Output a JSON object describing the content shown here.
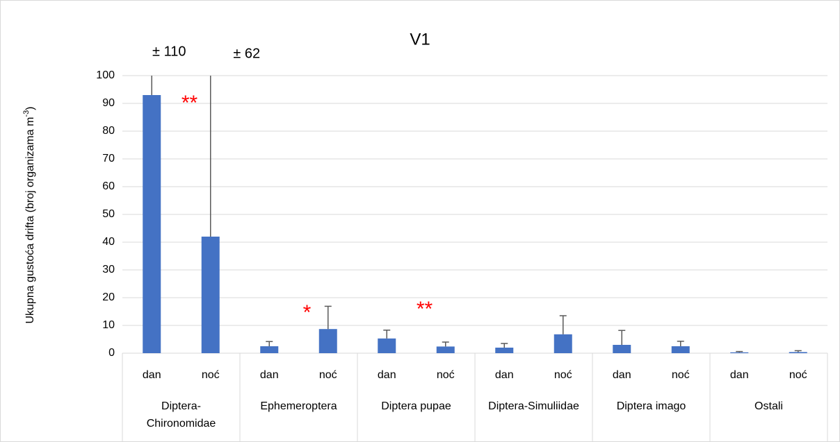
{
  "chart_data": {
    "type": "bar",
    "title": "V1",
    "y_label": "Ukupna gustoća drifta (broj organizama m",
    "y_label_sup": "-3",
    "y_label_end": ")",
    "groups": [
      {
        "name": "Diptera-Chironomidae",
        "categories": [
          "dan",
          "noć"
        ]
      },
      {
        "name": "Ephemeroptera",
        "categories": [
          "dan",
          "noć"
        ]
      },
      {
        "name": "Diptera pupae",
        "categories": [
          "dan",
          "noć"
        ]
      },
      {
        "name": "Diptera-Simuliidae",
        "categories": [
          "dan",
          "noć"
        ]
      },
      {
        "name": "Diptera imago",
        "categories": [
          "dan",
          "noć"
        ]
      },
      {
        "name": "Ostali",
        "categories": [
          "dan",
          "noć"
        ]
      }
    ],
    "series": [
      {
        "color": "#4472c4",
        "values": [
          93,
          42,
          2.5,
          8.7,
          5.3,
          2.4,
          2,
          6.8,
          3,
          2.5,
          0.3,
          0.4
        ],
        "errors": [
          110,
          62,
          1.7,
          8.2,
          3,
          1.6,
          1.5,
          6.7,
          5.2,
          1.8,
          0.3,
          0.5
        ],
        "error_labels": [
          "± 110",
          "± 62",
          null,
          null,
          null,
          null,
          null,
          null,
          null,
          null,
          null,
          null
        ]
      }
    ],
    "significance": [
      "**",
      "*",
      "**",
      null,
      null,
      null
    ],
    "significance_color": "#ff0000",
    "error_color": "#595959",
    "ylim": [
      0,
      100
    ],
    "yticks": [
      0,
      10,
      20,
      30,
      40,
      50,
      60,
      70,
      80,
      90,
      100
    ],
    "grid": true
  }
}
